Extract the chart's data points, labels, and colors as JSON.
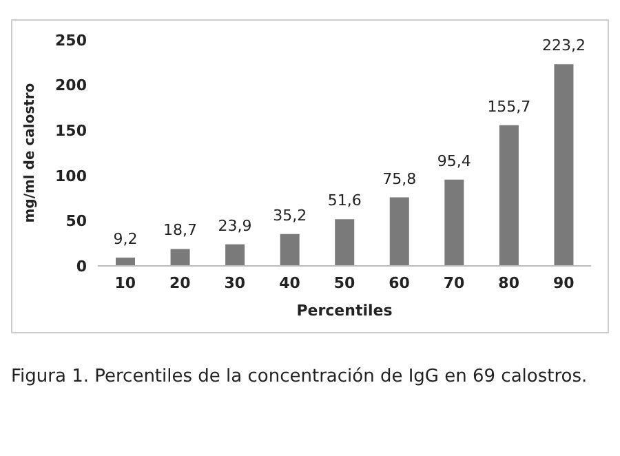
{
  "chart_data": {
    "type": "bar",
    "categories": [
      "10",
      "20",
      "30",
      "40",
      "50",
      "60",
      "70",
      "80",
      "90"
    ],
    "values": [
      9.2,
      18.7,
      23.9,
      35.2,
      51.6,
      75.8,
      95.4,
      155.7,
      223.2
    ],
    "value_labels": [
      "9,2",
      "18,7",
      "23,9",
      "35,2",
      "51,6",
      "75,8",
      "95,4",
      "155,7",
      "223,2"
    ],
    "color": "#7a7a7a",
    "xlabel": "Percentiles",
    "ylabel": "mg/ml de calostro",
    "ylim": [
      0,
      250
    ],
    "yticks": [
      0,
      50,
      100,
      150,
      200,
      250
    ],
    "grid": false,
    "legend": false,
    "annotations": [
      "Figura 1. Percentiles de la concentración de IgG en 69 calostros."
    ]
  }
}
